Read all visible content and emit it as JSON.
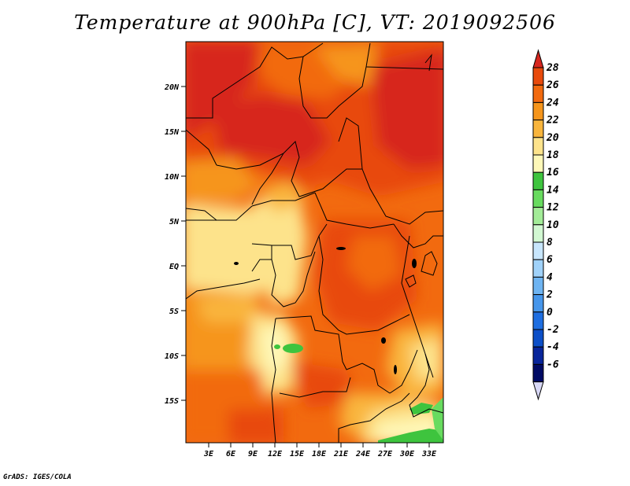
{
  "title": "Temperature at 900hPa [C], VT: 2019092506",
  "credit": "GrADS: IGES/COLA",
  "map": {
    "lat_ticks": [
      "20N",
      "15N",
      "10N",
      "5N",
      "EQ",
      "5S",
      "10S",
      "15S"
    ],
    "lon_ticks": [
      "3E",
      "6E",
      "9E",
      "12E",
      "15E",
      "18E",
      "21E",
      "24E",
      "27E",
      "30E",
      "33E"
    ]
  },
  "colorbar": {
    "levels": [
      "28",
      "26",
      "24",
      "22",
      "20",
      "18",
      "16",
      "14",
      "12",
      "10",
      "8",
      "6",
      "4",
      "2",
      "0",
      "-2",
      "-4",
      "-6"
    ],
    "colors": [
      "#d7261e",
      "#e84a0c",
      "#f26a0f",
      "#f6951b",
      "#f9b53c",
      "#fde38b",
      "#fef8b8",
      "#3ec43e",
      "#68db5f",
      "#a3ec98",
      "#d2f8d2",
      "#c8e6fc",
      "#a0d2fa",
      "#6eb4f2",
      "#4696eb",
      "#1e6ee1",
      "#0c4fc8",
      "#08259b",
      "#000a64",
      "#d8d8f6"
    ]
  }
}
